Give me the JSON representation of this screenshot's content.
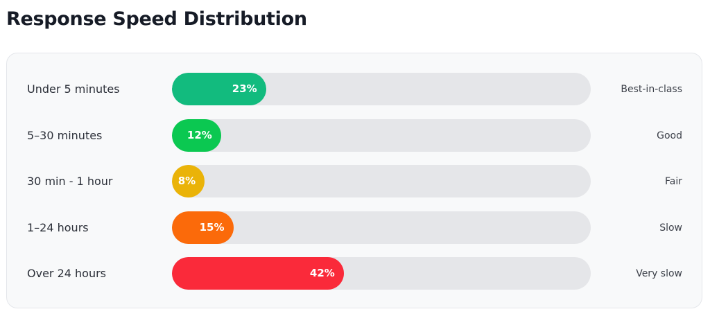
{
  "title": "Response Speed Distribution",
  "chart_data": {
    "type": "bar",
    "orientation": "horizontal",
    "categories": [
      "Under 5 minutes",
      "5–30 minutes",
      "30 min - 1 hour",
      "1–24 hours",
      "Over 24 hours"
    ],
    "values": [
      23,
      12,
      8,
      15,
      42
    ],
    "value_labels": [
      "23%",
      "12%",
      "8%",
      "15%",
      "42%"
    ],
    "ratings": [
      "Best-in-class",
      "Good",
      "Fair",
      "Slow",
      "Very slow"
    ],
    "colors": [
      "#12bb7e",
      "#0bc851",
      "#eab308",
      "#fb6a0a",
      "#fa2a3a"
    ],
    "xlim": [
      0,
      100
    ]
  }
}
